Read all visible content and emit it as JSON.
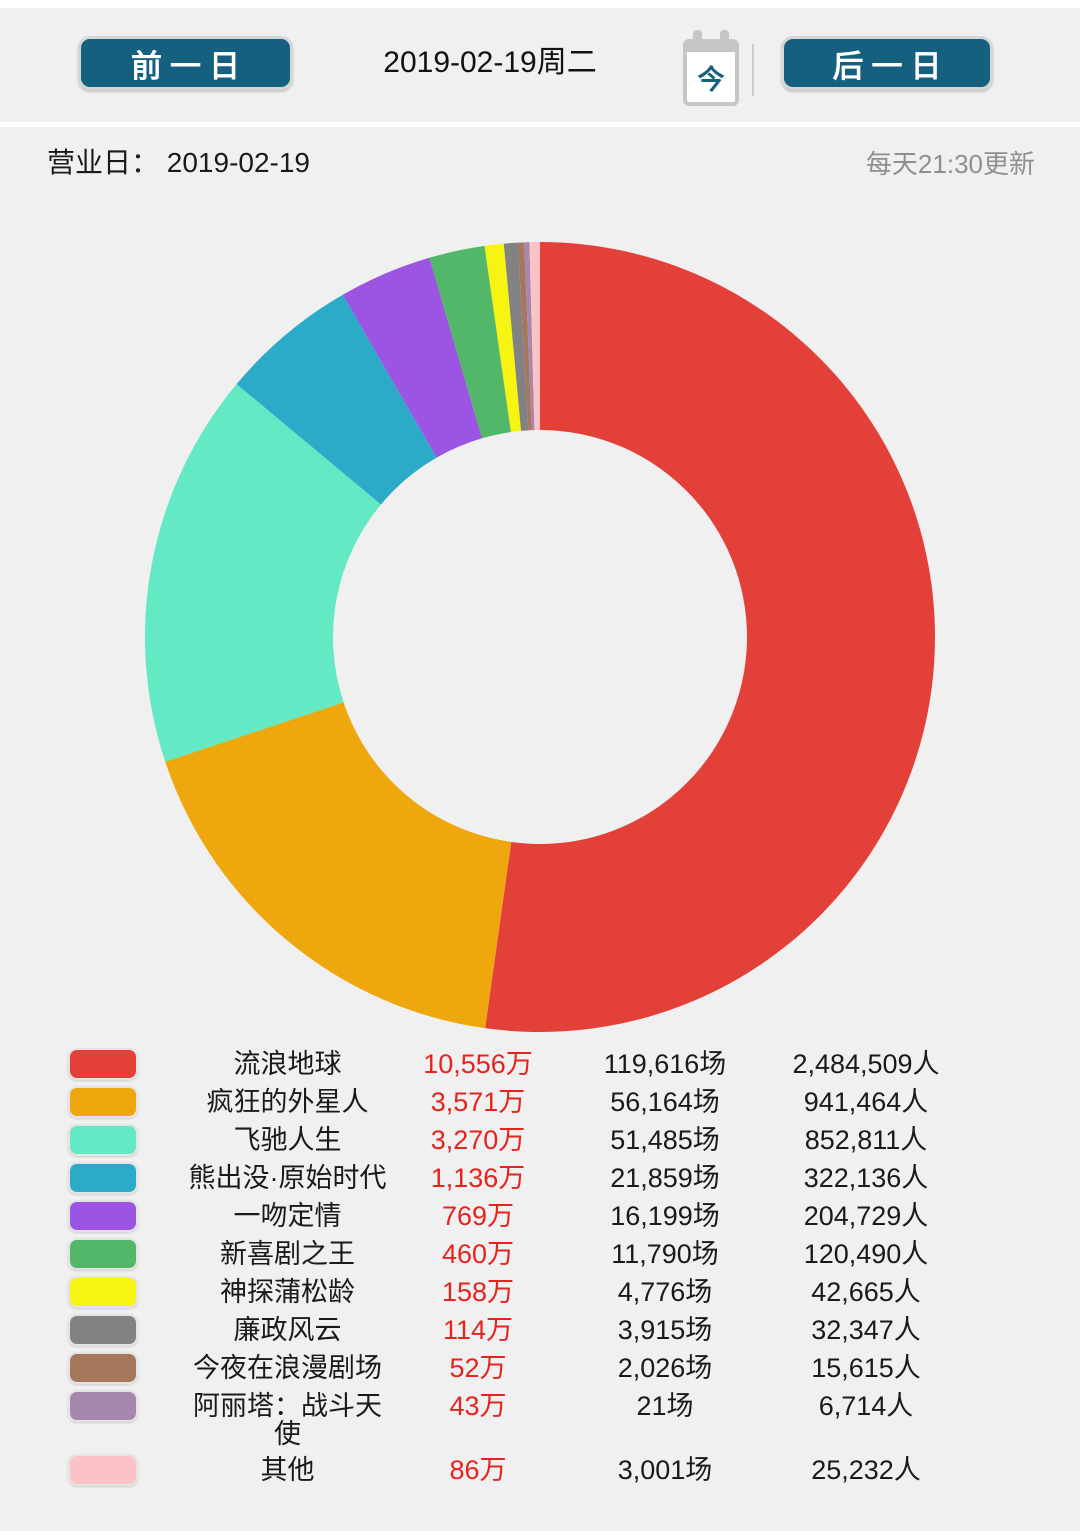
{
  "header": {
    "prev_button_label": "前一日",
    "date_label": "2019-02-19周二",
    "today_icon_char": "今",
    "next_button_label": "后一日"
  },
  "info_bar": {
    "business_day_text": "营业日： 2019-02-19",
    "update_note": "每天21:30更新"
  },
  "colors": {
    "page_background": "#f0f0f0",
    "button_background": "#16607f",
    "button_text": "#ffffff",
    "revenue_text": "#e6231e",
    "muted_text": "#8f8f8f"
  },
  "chart_data": {
    "type": "pie",
    "subtype": "donut",
    "title": "",
    "legend_position": "bottom",
    "start_angle": "top",
    "direction": "clockwise",
    "inner_radius_ratio": 0.52,
    "value_unit": "万",
    "slices": [
      {
        "label": "流浪地球",
        "value": 10556,
        "revenue": "10,556万",
        "shows": "119,616场",
        "admissions": "2,484,509人",
        "color": "#e4403a"
      },
      {
        "label": "疯狂的外星人",
        "value": 3571,
        "revenue": "3,571万",
        "shows": "56,164场",
        "admissions": "941,464人",
        "color": "#efa70e"
      },
      {
        "label": "飞驰人生",
        "value": 3270,
        "revenue": "3,270万",
        "shows": "51,485场",
        "admissions": "852,811人",
        "color": "#63e9c3"
      },
      {
        "label": "熊出没·原始时代",
        "value": 1136,
        "revenue": "1,136万",
        "shows": "21,859场",
        "admissions": "322,136人",
        "color": "#2cabc9"
      },
      {
        "label": "一吻定情",
        "value": 769,
        "revenue": "769万",
        "shows": "16,199场",
        "admissions": "204,729人",
        "color": "#9b55e2"
      },
      {
        "label": "新喜剧之王",
        "value": 460,
        "revenue": "460万",
        "shows": "11,790场",
        "admissions": "120,490人",
        "color": "#52b768"
      },
      {
        "label": "神探蒲松龄",
        "value": 158,
        "revenue": "158万",
        "shows": "4,776场",
        "admissions": "42,665人",
        "color": "#f6f410"
      },
      {
        "label": "廉政风云",
        "value": 114,
        "revenue": "114万",
        "shows": "3,915场",
        "admissions": "32,347人",
        "color": "#828282"
      },
      {
        "label": "今夜在浪漫剧场",
        "value": 52,
        "revenue": "52万",
        "shows": "2,026场",
        "admissions": "15,615人",
        "color": "#a5785e"
      },
      {
        "label": "阿丽塔：战斗天使",
        "value": 43,
        "revenue": "43万",
        "shows": "21场",
        "admissions": "6,714人",
        "color": "#a787ae"
      },
      {
        "label": "其他",
        "value": 86,
        "revenue": "86万",
        "shows": "3,001场",
        "admissions": "25,232人",
        "color": "#fcc3c6"
      }
    ]
  }
}
